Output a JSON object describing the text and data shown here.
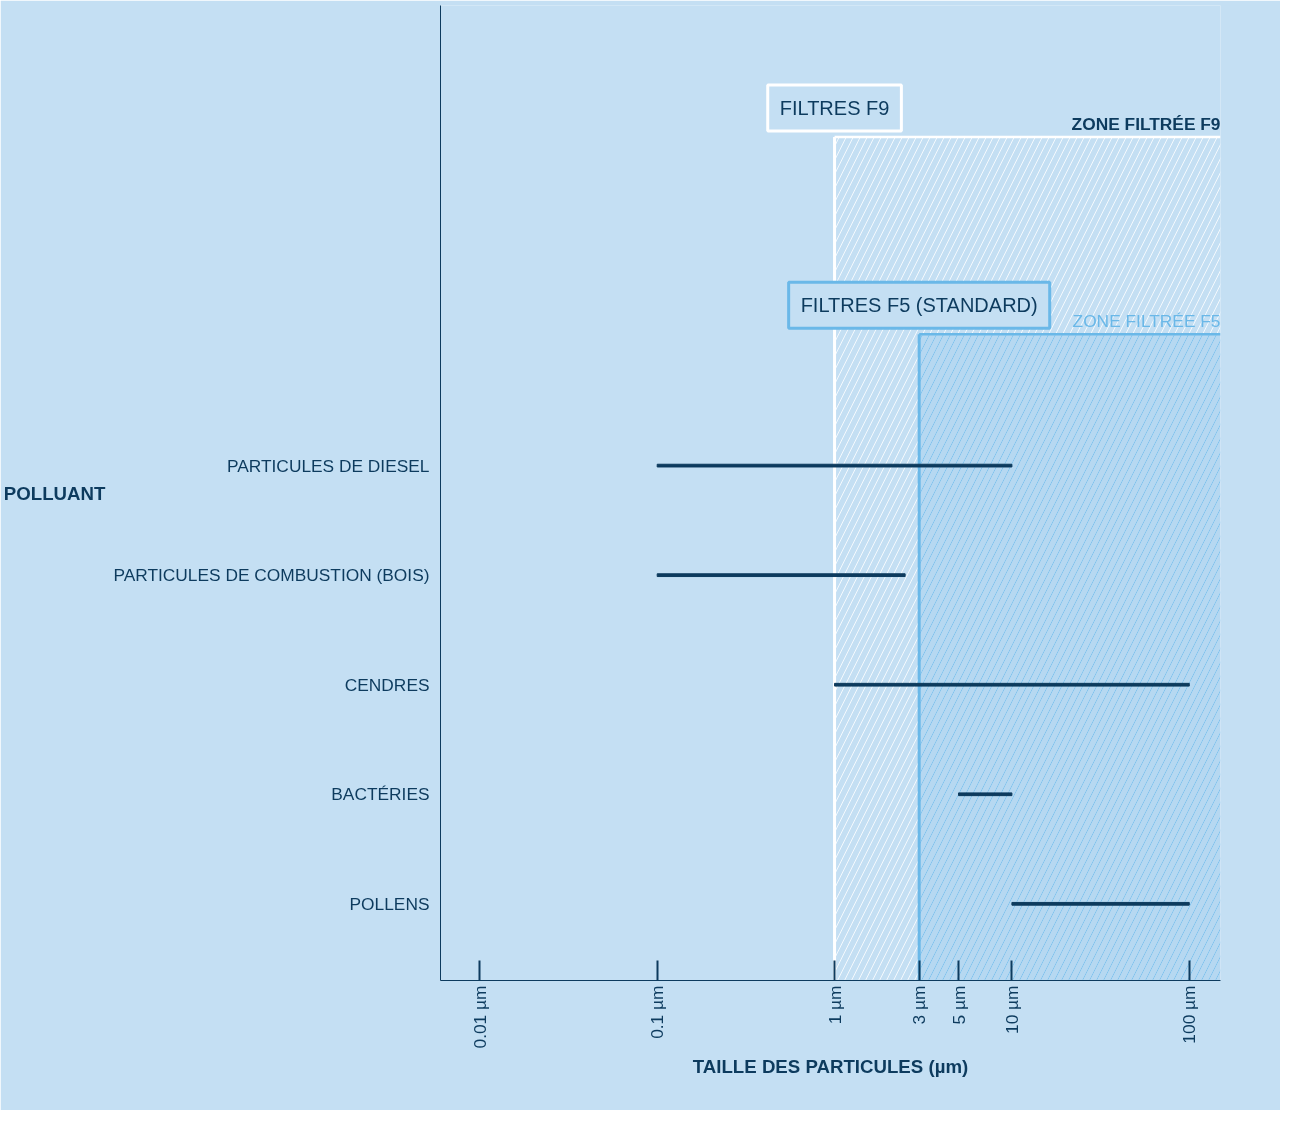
{
  "chart_data": {
    "type": "bar",
    "orientation": "horizontal",
    "xlabel": "TAILLE DES PARTICULES (µm)",
    "ylabel": "POLLUANT",
    "categories": [
      "PARTICULES DE DIESEL",
      "PARTICULES DE COMBUSTION (BOIS)",
      "CENDRES",
      "BACTÉRIES",
      "POLLENS"
    ],
    "base": [
      0.1,
      0.1,
      1,
      5,
      10
    ],
    "values": [
      9.9,
      2.4,
      99,
      5,
      90
    ],
    "color": "#0d3b5e",
    "log": "x",
    "xlim": [
      0.006,
      150
    ],
    "xticks": [
      {
        "value": 0.01,
        "label": "0.01 µm"
      },
      {
        "value": 0.1,
        "label": "0.1 µm"
      },
      {
        "value": 1,
        "label": "1 µm"
      },
      {
        "value": 3,
        "label": "3 µm"
      },
      {
        "value": 5,
        "label": "5 µm"
      },
      {
        "value": 10,
        "label": "10 µm"
      },
      {
        "value": 100,
        "label": "100 µm"
      }
    ],
    "bands": [
      {
        "axis": "x",
        "from": 1,
        "to": 150,
        "label": "ZONE FILTRÉE F9",
        "color": "#ffffff"
      },
      {
        "axis": "x",
        "from": 3,
        "to": 150,
        "label": "ZONE FILTRÉE F5",
        "color": "#6ab8e8"
      }
    ],
    "ref_lines": [
      {
        "axis": "x",
        "value": 1,
        "label": "FILTRES F9",
        "color": "#ffffff"
      },
      {
        "axis": "x",
        "value": 3,
        "label": "FILTRES F5 (STANDARD)",
        "color": "#6ab8e8"
      }
    ],
    "grid": false
  }
}
